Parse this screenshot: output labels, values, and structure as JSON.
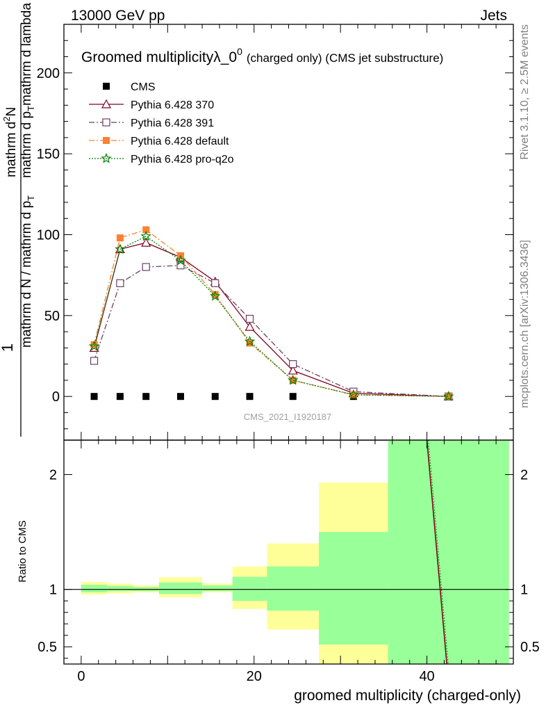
{
  "header": {
    "left": "13000 GeV pp",
    "right": "Jets"
  },
  "side_labels": {
    "rivet": "Rivet 3.1.10, ≥ 2.5M events",
    "mcplots": "mcplots.cern.ch [arXiv:1306.3436]"
  },
  "watermark": "CMS_2021_I1920187",
  "chart_data": [
    {
      "type": "line",
      "title_main": "Groomed multiplicityλ_0",
      "title_sup": "0",
      "title_rest": "(charged only) (CMS jet substructure)",
      "ylabel_top": "1",
      "ylabel_num": "mathrm dN / mathrm d p",
      "ylabel_den": "mathrm d N / mathrm d p",
      "ylabel_sub": "T",
      "ylabel_num_rest": "mathrm d lambda",
      "ylabel_frac1_num": "mathrm d",
      "ylabel_frac1_sup": "2",
      "ylabel_frac1_N": "N",
      "ylim": [
        -27,
        230
      ],
      "xlim": [
        -2,
        50
      ],
      "yticks": [
        "0",
        "50",
        "100",
        "150",
        "200"
      ],
      "ytick_values": [
        0,
        50,
        100,
        150,
        200
      ],
      "legend_position": "top-left",
      "series": [
        {
          "name": "CMS",
          "color": "#000000",
          "marker": "filled-square",
          "x": [
            1.5,
            4.5,
            7.5,
            11.5,
            15.5,
            19.5,
            24.5,
            31.5,
            42.5
          ],
          "y": [
            0,
            0,
            0,
            0,
            0,
            0,
            0,
            0,
            0
          ]
        },
        {
          "name": "Pythia 6.428 370",
          "color": "#800020",
          "marker": "open-triangle",
          "line": "solid",
          "x": [
            1.5,
            4.5,
            7.5,
            11.5,
            15.5,
            19.5,
            24.5,
            31.5,
            42.5
          ],
          "y": [
            30,
            91,
            95,
            86,
            71,
            43,
            16,
            2,
            0
          ]
        },
        {
          "name": "Pythia 6.428 391",
          "color": "#6b4060",
          "marker": "open-square",
          "line": "dashdot",
          "x": [
            1.5,
            4.5,
            7.5,
            11.5,
            15.5,
            19.5,
            24.5,
            31.5,
            42.5
          ],
          "y": [
            22,
            70,
            80,
            81,
            70,
            48,
            20,
            3,
            0
          ]
        },
        {
          "name": "Pythia 6.428 default",
          "color": "#ff8030",
          "marker": "filled-square",
          "line": "dashdot",
          "x": [
            1.5,
            4.5,
            7.5,
            11.5,
            15.5,
            19.5,
            24.5,
            31.5,
            42.5
          ],
          "y": [
            32,
            98,
            103,
            87,
            63,
            33,
            10,
            1,
            0
          ]
        },
        {
          "name": "Pythia 6.428 pro-q2o",
          "color": "#008000",
          "marker": "star",
          "line": "dotted",
          "x": [
            1.5,
            4.5,
            7.5,
            11.5,
            15.5,
            19.5,
            24.5,
            31.5,
            42.5
          ],
          "y": [
            31,
            91,
            99,
            84,
            62,
            34,
            10,
            1,
            0
          ]
        }
      ]
    },
    {
      "type": "area",
      "ylabel": "Ratio to CMS",
      "xlabel": "groomed multiplicity (charged-only)",
      "xlim": [
        -2,
        50
      ],
      "ylim": [
        0.35,
        2.3
      ],
      "xticks": [
        "0",
        "20",
        "40"
      ],
      "xtick_values": [
        0,
        20,
        40
      ],
      "yticks": [
        "0.5",
        "1",
        "2"
      ],
      "ytick_values": [
        0.5,
        1,
        2
      ],
      "bins": [
        {
          "x0": 0,
          "x1": 3,
          "stat_lo": 0.975,
          "stat_hi": 1.04,
          "tot_lo": 0.955,
          "tot_hi": 1.065
        },
        {
          "x0": 3,
          "x1": 6,
          "stat_lo": 0.985,
          "stat_hi": 1.03,
          "tot_lo": 0.965,
          "tot_hi": 1.05
        },
        {
          "x0": 6,
          "x1": 9,
          "stat_lo": 0.985,
          "stat_hi": 1.02,
          "tot_lo": 0.975,
          "tot_hi": 1.035
        },
        {
          "x0": 9,
          "x1": 14,
          "stat_lo": 0.96,
          "stat_hi": 1.06,
          "tot_lo": 0.93,
          "tot_hi": 1.105
        },
        {
          "x0": 14,
          "x1": 17.5,
          "stat_lo": 0.985,
          "stat_hi": 1.035,
          "tot_lo": 0.975,
          "tot_hi": 1.05
        },
        {
          "x0": 17.5,
          "x1": 21.5,
          "stat_lo": 0.9,
          "stat_hi": 1.11,
          "tot_lo": 0.83,
          "tot_hi": 1.2
        },
        {
          "x0": 21.5,
          "x1": 27.5,
          "stat_lo": 0.815,
          "stat_hi": 1.2,
          "tot_lo": 0.65,
          "tot_hi": 1.4
        },
        {
          "x0": 27.5,
          "x1": 35.5,
          "stat_lo": 0.52,
          "stat_hi": 1.5,
          "tot_lo": 0.35,
          "tot_hi": 1.93
        },
        {
          "x0": 35.5,
          "x1": 49.5,
          "stat_lo": 0.35,
          "stat_hi": 2.3,
          "tot_lo": 0.35,
          "tot_hi": 2.3
        }
      ],
      "mc_line": {
        "color": "#800020",
        "x": [
          40.0,
          42.3
        ],
        "y": [
          2.3,
          0.35
        ]
      },
      "colors": {
        "stat": "#99ff99",
        "tot": "#ffff99"
      }
    }
  ]
}
